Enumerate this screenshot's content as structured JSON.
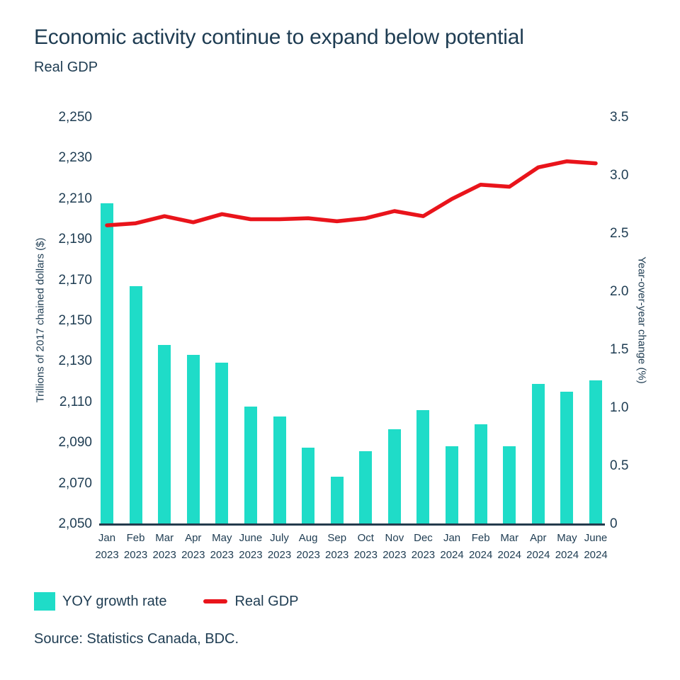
{
  "title": "Economic activity continue to expand below potential",
  "subtitle": "Real GDP",
  "source": "Source: Statistics Canada, BDC.",
  "colors": {
    "text": "#1e3c52",
    "bar": "#1fdcc8",
    "line": "#e9141b",
    "axis_line": "#243b4d",
    "background": "#ffffff"
  },
  "chart_data": {
    "type": "combo",
    "grid": false,
    "legend_position": "bottom-left",
    "categories": [
      {
        "month": "Jan",
        "year": "2023"
      },
      {
        "month": "Feb",
        "year": "2023"
      },
      {
        "month": "Mar",
        "year": "2023"
      },
      {
        "month": "Apr",
        "year": "2023"
      },
      {
        "month": "May",
        "year": "2023"
      },
      {
        "month": "June",
        "year": "2023"
      },
      {
        "month": "July",
        "year": "2023"
      },
      {
        "month": "Aug",
        "year": "2023"
      },
      {
        "month": "Sep",
        "year": "2023"
      },
      {
        "month": "Oct",
        "year": "2023"
      },
      {
        "month": "Nov",
        "year": "2023"
      },
      {
        "month": "Dec",
        "year": "2023"
      },
      {
        "month": "Jan",
        "year": "2024"
      },
      {
        "month": "Feb",
        "year": "2024"
      },
      {
        "month": "Mar",
        "year": "2024"
      },
      {
        "month": "Apr",
        "year": "2024"
      },
      {
        "month": "May",
        "year": "2024"
      },
      {
        "month": "June",
        "year": "2024"
      }
    ],
    "series": [
      {
        "name": "YOY growth rate",
        "type": "bar",
        "axis": "right",
        "unit": "%",
        "color": "#1fdcc8",
        "values": [
          2.76,
          2.05,
          1.54,
          1.46,
          1.39,
          1.01,
          0.93,
          0.66,
          0.41,
          0.63,
          0.82,
          0.98,
          0.67,
          0.86,
          0.67,
          1.21,
          1.14,
          1.24
        ]
      },
      {
        "name": "Real GDP",
        "type": "line",
        "axis": "left",
        "unit": "trillions of 2017 chained dollars",
        "color": "#e9141b",
        "values": [
          2197,
          2198,
          2201.5,
          2198.5,
          2202.5,
          2200,
          2200,
          2200.5,
          2199,
          2200.5,
          2204,
          2201.5,
          2210,
          2217,
          2216,
          2225.5,
          2228.5,
          2227.5
        ]
      }
    ],
    "left_axis": {
      "title": "Trillions of 2017 chained dollars ($)",
      "min": 2050,
      "max": 2250,
      "tick_step": 20,
      "tick_labels": [
        "2,250",
        "2,230",
        "2,210",
        "2,190",
        "2,170",
        "2,150",
        "2,130",
        "2,110",
        "2,090",
        "2,070",
        "2,050"
      ]
    },
    "right_axis": {
      "title": "Year-over-year change (%)",
      "min": 0,
      "max": 3.5,
      "tick_step": 0.5,
      "tick_labels": [
        "3.5",
        "3.0",
        "2.5",
        "2.0",
        "1.5",
        "1.0",
        "0.5",
        "0"
      ]
    }
  }
}
